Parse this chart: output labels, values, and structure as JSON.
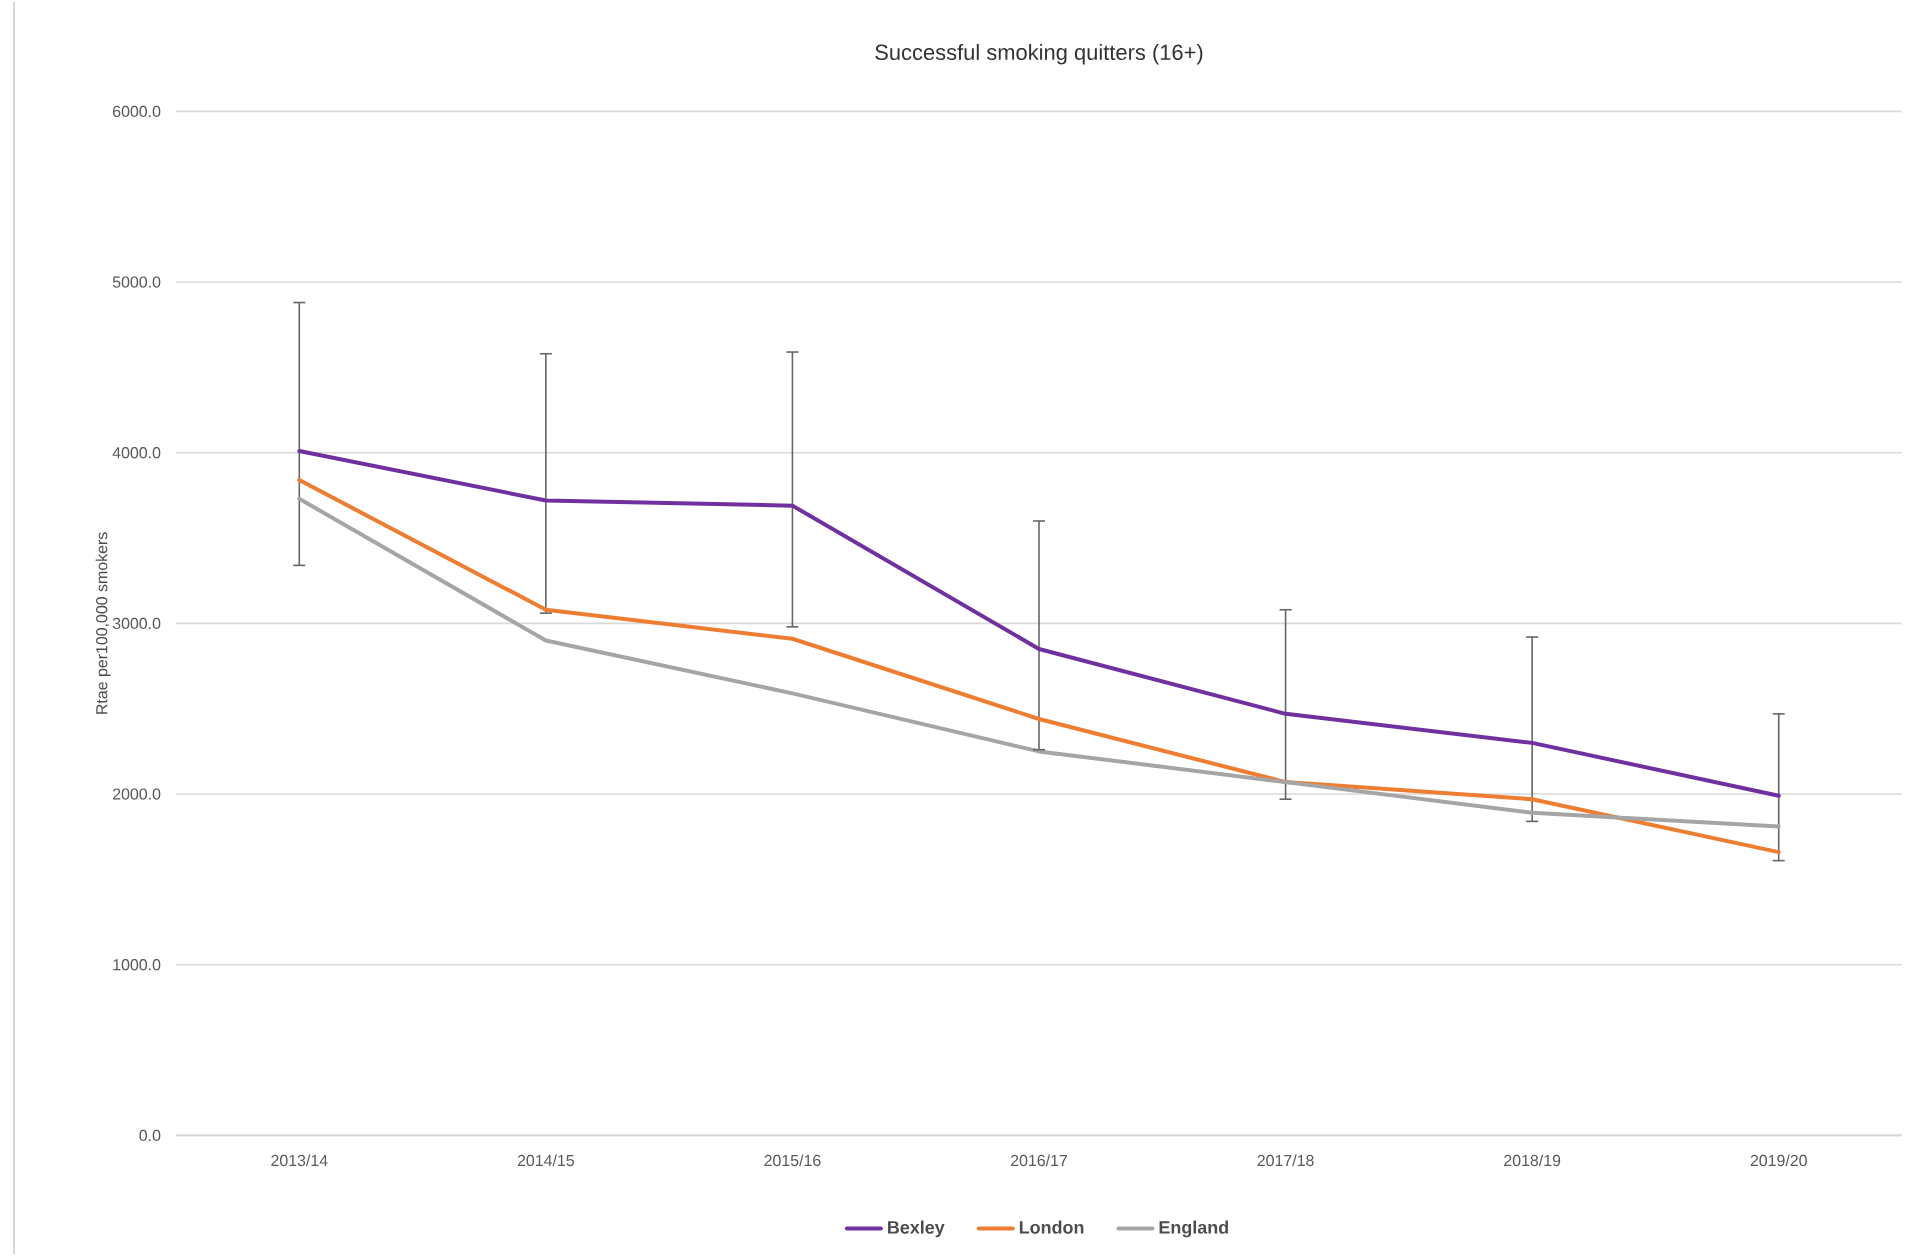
{
  "chart_data": {
    "type": "line",
    "title": "Successful smoking quitters (16+)",
    "ylabel": "Rtae per100,000 smokers",
    "categories": [
      "2013/14",
      "2014/15",
      "2015/16",
      "2016/17",
      "2017/18",
      "2018/19",
      "2019/20"
    ],
    "series": [
      {
        "name": "Bexley",
        "color": "#7030a0",
        "values": [
          4010,
          3720,
          3690,
          2850,
          2470,
          2300,
          1990
        ],
        "errors": [
          [
            3340,
            4880
          ],
          [
            3060,
            4580
          ],
          [
            2980,
            4590
          ],
          [
            2260,
            3600
          ],
          [
            1970,
            3080
          ],
          [
            1840,
            2920
          ],
          [
            1610,
            2470
          ]
        ]
      },
      {
        "name": "London",
        "color": "#ed7d31",
        "values": [
          3840,
          3080,
          2910,
          2440,
          2070,
          1970,
          1660
        ]
      },
      {
        "name": "England",
        "color": "#a5a5a5",
        "values": [
          3730,
          2900,
          2590,
          2250,
          2070,
          1890,
          1810
        ]
      }
    ],
    "ylim": [
      0,
      6000
    ],
    "yticks": [
      {
        "value": 0,
        "label": "0.0"
      },
      {
        "value": 1000,
        "label": "1000.0"
      },
      {
        "value": 2000,
        "label": "2000.0"
      },
      {
        "value": 3000,
        "label": "3000.0"
      },
      {
        "value": 4000,
        "label": "4000.0"
      },
      {
        "value": 5000,
        "label": "5000.0"
      },
      {
        "value": 6000,
        "label": "6000.0"
      }
    ],
    "grid": "y",
    "legend": "bottom",
    "marker": "none",
    "line_style": "solid"
  }
}
